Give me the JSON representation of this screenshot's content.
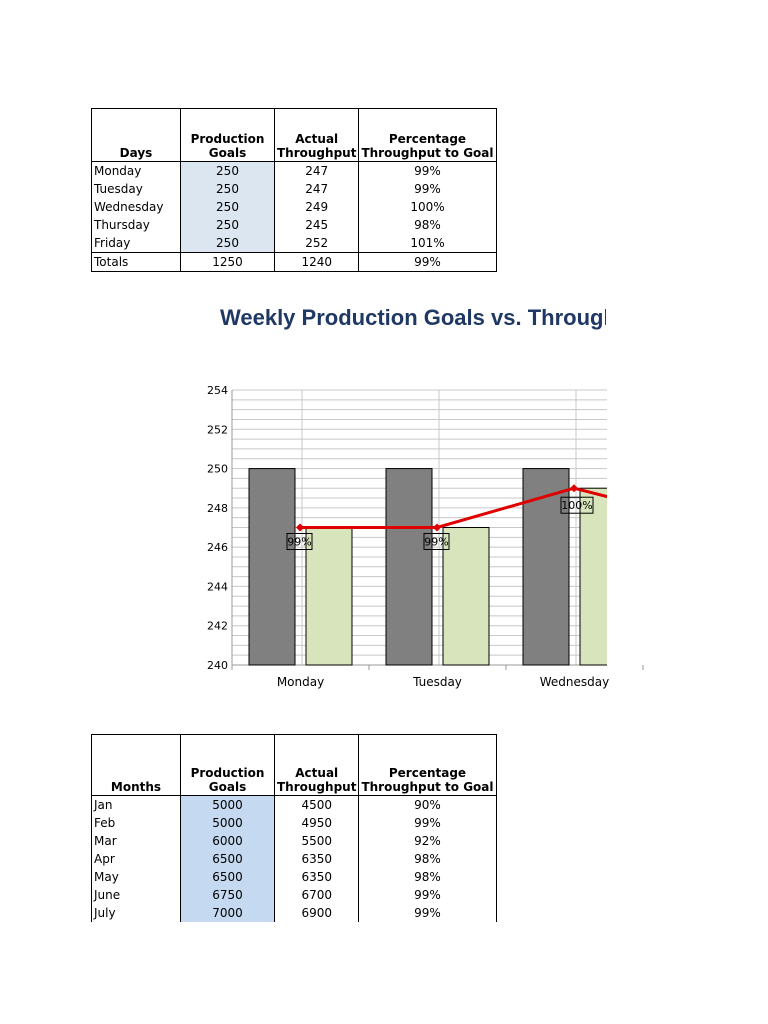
{
  "weekly_table": {
    "headers": {
      "col1": "Days",
      "col2_line1": "Production",
      "col2_line2": "Goals",
      "col3_line1": "Actual",
      "col3_line2": "Throughput",
      "col4_line1": "Percentage",
      "col4_line2": "Throughput to Goal"
    },
    "rows": [
      {
        "label": "Monday",
        "goal": "250",
        "actual": "247",
        "pct": "99%"
      },
      {
        "label": "Tuesday",
        "goal": "250",
        "actual": "247",
        "pct": "99%"
      },
      {
        "label": "Wednesday",
        "goal": "250",
        "actual": "249",
        "pct": "100%"
      },
      {
        "label": "Thursday",
        "goal": "250",
        "actual": "245",
        "pct": "98%"
      },
      {
        "label": "Friday",
        "goal": "250",
        "actual": "252",
        "pct": "101%"
      }
    ],
    "totals": {
      "label": "Totals",
      "goal": "1250",
      "actual": "1240",
      "pct": "99%"
    }
  },
  "chart_title": "Weekly Production Goals vs. Throughput",
  "chart_data": {
    "type": "bar",
    "title": "Weekly Production Goals vs. Throughput",
    "categories": [
      "Monday",
      "Tuesday",
      "Wednesday"
    ],
    "series": [
      {
        "values": [
          250,
          250,
          250
        ],
        "color": "#808080"
      },
      {
        "values": [
          247,
          247,
          249
        ],
        "color": "#d8e4bc"
      },
      {
        "type": "line",
        "values": [
          247,
          247,
          249
        ],
        "labels": [
          "99%",
          "99%",
          "100%"
        ],
        "color": "#e00000"
      }
    ],
    "ylim": [
      240,
      254
    ],
    "yticks": [
      240,
      242,
      244,
      246,
      248,
      250,
      252,
      254
    ],
    "grid": true,
    "clipped_right": true
  },
  "monthly_table": {
    "headers": {
      "col1": "Months",
      "col2_line1": "Production",
      "col2_line2": "Goals",
      "col3_line1": "Actual",
      "col3_line2": "Throughput",
      "col4_line1": "Percentage",
      "col4_line2": "Throughput to Goal"
    },
    "rows": [
      {
        "label": "Jan",
        "goal": "5000",
        "actual": "4500",
        "pct": "90%"
      },
      {
        "label": "Feb",
        "goal": "5000",
        "actual": "4950",
        "pct": "99%"
      },
      {
        "label": "Mar",
        "goal": "6000",
        "actual": "5500",
        "pct": "92%"
      },
      {
        "label": "Apr",
        "goal": "6500",
        "actual": "6350",
        "pct": "98%"
      },
      {
        "label": "May",
        "goal": "6500",
        "actual": "6350",
        "pct": "98%"
      },
      {
        "label": "June",
        "goal": "6750",
        "actual": "6700",
        "pct": "99%"
      },
      {
        "label": "July",
        "goal": "7000",
        "actual": "6900",
        "pct": "99%"
      }
    ]
  }
}
